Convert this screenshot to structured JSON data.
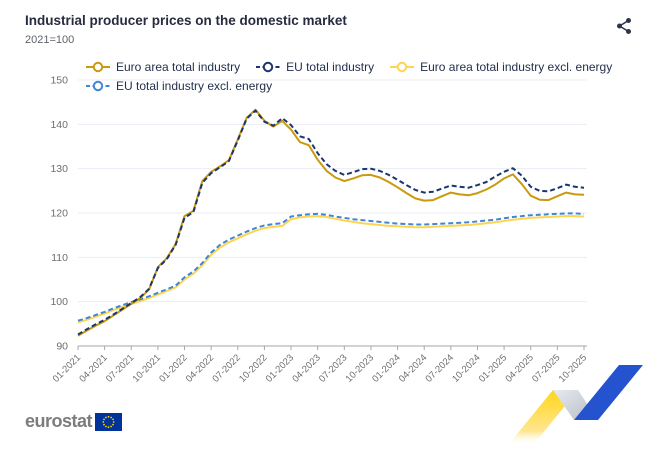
{
  "header": {
    "title": "Industrial producer prices on the domestic market",
    "subtitle": "2021=100"
  },
  "icons": {
    "share": "share-network-icon",
    "eu_flag": "eu-flag-icon"
  },
  "footer": {
    "brand": "eurostat"
  },
  "colors": {
    "title_text": "#262b3f",
    "subtitle_text": "#5f6368",
    "legend_text": "#23304d",
    "axis_text": "#6e6e6e",
    "gridline": "#e8edf4",
    "axis_line": "#a6a6a6",
    "euro_area_total": "#c9990e",
    "eu_total": "#1b356e",
    "euro_area_excl_energy": "#ffd54f",
    "eu_excl_energy": "#3d87d9",
    "eurostat_gray": "#7d7d7d",
    "eu_blue": "#003399",
    "ribbon_yellow": "#ffd617",
    "ribbon_gray": "#c0c6cf",
    "ribbon_blue": "#2553d0"
  },
  "chart_data": {
    "type": "line",
    "title": "Industrial producer prices on the domestic market",
    "subtitle": "2021=100",
    "xlabel": "",
    "ylabel": "",
    "grid": true,
    "legend_position": "top",
    "ylim": [
      90,
      150
    ],
    "yticks": [
      90,
      100,
      110,
      120,
      130,
      140,
      150
    ],
    "x_tick_every": 3,
    "x": [
      "01-2021",
      "02-2021",
      "03-2021",
      "04-2021",
      "05-2021",
      "06-2021",
      "07-2021",
      "08-2021",
      "09-2021",
      "10-2021",
      "11-2021",
      "12-2021",
      "01-2022",
      "02-2022",
      "03-2022",
      "04-2022",
      "05-2022",
      "06-2022",
      "07-2022",
      "08-2022",
      "09-2022",
      "10-2022",
      "11-2022",
      "12-2022",
      "01-2023",
      "02-2023",
      "03-2023",
      "04-2023",
      "05-2023",
      "06-2023",
      "07-2023",
      "08-2023",
      "09-2023",
      "10-2023",
      "11-2023",
      "12-2023",
      "01-2024",
      "02-2024",
      "03-2024",
      "04-2024",
      "05-2024",
      "06-2024",
      "07-2024",
      "08-2024",
      "09-2024",
      "10-2024",
      "11-2024",
      "12-2024",
      "01-2025",
      "02-2025",
      "03-2025",
      "04-2025",
      "05-2025",
      "06-2025",
      "07-2025",
      "08-2025",
      "09-2025",
      "10-2025"
    ],
    "series": [
      {
        "id": "euro-area-total-industry",
        "name": "Euro area total industry",
        "color": "#c9990e",
        "dash": null,
        "values": [
          92.3,
          93.5,
          94.6,
          95.6,
          96.9,
          98.2,
          99.5,
          100.8,
          102.7,
          107.8,
          109.8,
          113.0,
          119.3,
          120.5,
          127.2,
          129.3,
          130.5,
          131.9,
          136.6,
          141.5,
          143.3,
          140.8,
          139.5,
          140.8,
          138.8,
          136.0,
          135.3,
          132.0,
          129.5,
          128.0,
          127.2,
          127.8,
          128.5,
          128.6,
          128.0,
          127.0,
          125.8,
          124.5,
          123.3,
          122.8,
          122.9,
          123.8,
          124.6,
          124.2,
          124.0,
          124.5,
          125.3,
          126.4,
          127.8,
          128.7,
          126.5,
          123.9,
          123.0,
          122.9,
          123.8,
          124.6,
          124.2,
          124.1
        ]
      },
      {
        "id": "eu-total-industry",
        "name": "EU total industry",
        "color": "#1b356e",
        "dash": "5,3",
        "values": [
          92.6,
          93.8,
          94.9,
          95.9,
          97.1,
          98.4,
          99.7,
          101.0,
          102.9,
          107.6,
          109.6,
          112.8,
          118.9,
          120.2,
          126.8,
          129.0,
          130.3,
          131.7,
          136.4,
          141.3,
          143.1,
          140.6,
          139.7,
          141.4,
          139.8,
          137.3,
          136.7,
          133.5,
          131.0,
          129.5,
          128.6,
          129.2,
          129.9,
          130.0,
          129.5,
          128.6,
          127.5,
          126.3,
          125.2,
          124.6,
          124.8,
          125.5,
          126.2,
          125.9,
          125.7,
          126.3,
          127.0,
          128.2,
          129.3,
          130.1,
          128.4,
          125.9,
          125.0,
          124.9,
          125.6,
          126.4,
          125.9,
          125.7
        ]
      },
      {
        "id": "euro-area-total-industry-excl-energy",
        "name": "Euro area total industry excl. energy",
        "color": "#ffd54f",
        "dash": null,
        "values": [
          95.3,
          95.9,
          96.6,
          97.3,
          98.1,
          98.8,
          99.5,
          100.1,
          100.8,
          101.6,
          102.4,
          103.2,
          105.0,
          106.3,
          108.2,
          110.6,
          112.2,
          113.4,
          114.3,
          115.2,
          116.0,
          116.6,
          116.9,
          117.1,
          118.6,
          119.0,
          119.2,
          119.3,
          119.1,
          118.7,
          118.3,
          118.0,
          117.7,
          117.5,
          117.3,
          117.1,
          117.0,
          116.9,
          116.8,
          116.8,
          116.9,
          117.0,
          117.1,
          117.2,
          117.3,
          117.5,
          117.7,
          117.9,
          118.2,
          118.5,
          118.7,
          118.9,
          119.0,
          119.1,
          119.2,
          119.3,
          119.3,
          119.2
        ]
      },
      {
        "id": "eu-total-industry-excl-energy",
        "name": "EU total industry excl. energy",
        "color": "#3d87d9",
        "dash": "5,3",
        "values": [
          95.7,
          96.3,
          97.0,
          97.7,
          98.5,
          99.2,
          99.9,
          100.5,
          101.2,
          102.0,
          102.8,
          103.6,
          105.5,
          106.8,
          108.7,
          111.1,
          112.8,
          114.0,
          114.9,
          115.8,
          116.6,
          117.2,
          117.5,
          117.7,
          119.2,
          119.5,
          119.7,
          119.8,
          119.6,
          119.2,
          118.9,
          118.6,
          118.4,
          118.2,
          118.0,
          117.8,
          117.6,
          117.5,
          117.4,
          117.4,
          117.5,
          117.6,
          117.7,
          117.8,
          117.9,
          118.1,
          118.3,
          118.5,
          118.8,
          119.1,
          119.3,
          119.5,
          119.6,
          119.7,
          119.8,
          119.9,
          119.9,
          119.8
        ]
      }
    ]
  }
}
